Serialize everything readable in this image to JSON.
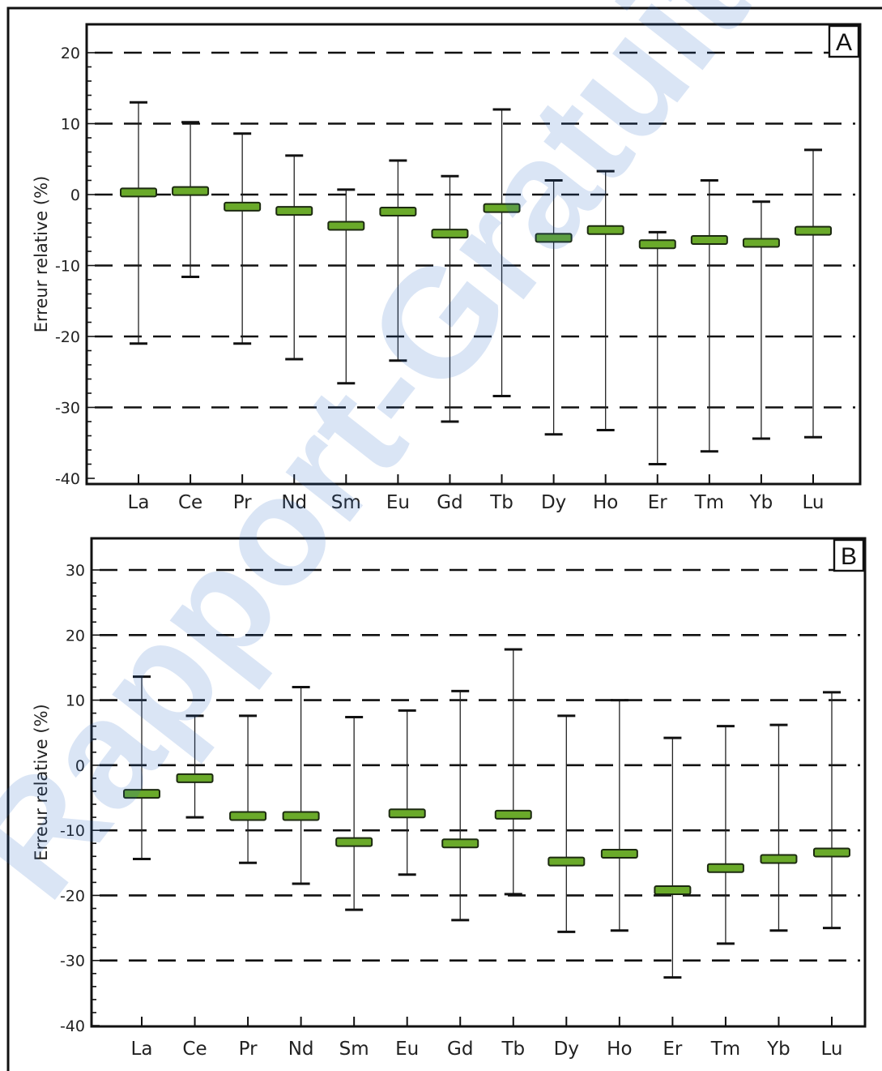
{
  "watermark": "Rapport-Gratuit.com",
  "colors": {
    "median": "#6aaa2a",
    "median_edge": "#1c2a10",
    "grid": "#111111",
    "watermark": "#1f63c4"
  },
  "chart_data": [
    {
      "type": "box",
      "panel_label": "A",
      "ylabel": "Erreur relative (%)",
      "ylim": [
        -40,
        24
      ],
      "yticks": [
        20,
        10,
        0,
        -10,
        -20,
        -30,
        -40
      ],
      "grid": "dashed at 20, 10, 0, -10, -20, -30",
      "categories": [
        "La",
        "Ce",
        "Pr",
        "Nd",
        "Sm",
        "Eu",
        "Gd",
        "Tb",
        "Dy",
        "Ho",
        "Er",
        "Tm",
        "Yb",
        "Lu"
      ],
      "max": [
        13,
        10.2,
        8.6,
        5.5,
        0.7,
        4.8,
        2.6,
        12,
        2,
        3.3,
        -5.3,
        2,
        -1,
        6.3
      ],
      "median": [
        0.3,
        0.5,
        -1.7,
        -2.3,
        -4.4,
        -2.4,
        -5.5,
        -1.9,
        -6.1,
        -5,
        -7,
        -6.4,
        -6.8,
        -5.1
      ],
      "min": [
        -21,
        -11.6,
        -21,
        -23.2,
        -26.6,
        -23.4,
        -32,
        -28.4,
        -33.8,
        -33.2,
        -38,
        -36.2,
        -34.4,
        -34.2
      ]
    },
    {
      "type": "box",
      "panel_label": "B",
      "ylabel": "Erreur relative (%)",
      "ylim": [
        -40,
        34
      ],
      "yticks": [
        30,
        20,
        10,
        0,
        -10,
        -20,
        -30,
        -40
      ],
      "grid": "dashed at 30, 20, 10, 0, -10, -20, -30",
      "categories": [
        "La",
        "Ce",
        "Pr",
        "Nd",
        "Sm",
        "Eu",
        "Gd",
        "Tb",
        "Dy",
        "Ho",
        "Er",
        "Tm",
        "Yb",
        "Lu"
      ],
      "max": [
        13.6,
        7.6,
        7.6,
        12,
        7.4,
        8.4,
        11.4,
        17.8,
        7.6,
        10,
        4.2,
        6,
        6.2,
        11.2
      ],
      "median": [
        -4.4,
        -2,
        -7.8,
        -7.8,
        -11.8,
        -7.4,
        -12,
        -7.6,
        -14.8,
        -13.6,
        -19.2,
        -15.8,
        -14.4,
        -13.4
      ],
      "min": [
        -14.4,
        -8,
        -15,
        -18.2,
        -22.2,
        -16.8,
        -23.8,
        -19.8,
        -25.6,
        -25.4,
        -32.6,
        -27.4,
        -25.4,
        -25
      ]
    }
  ]
}
